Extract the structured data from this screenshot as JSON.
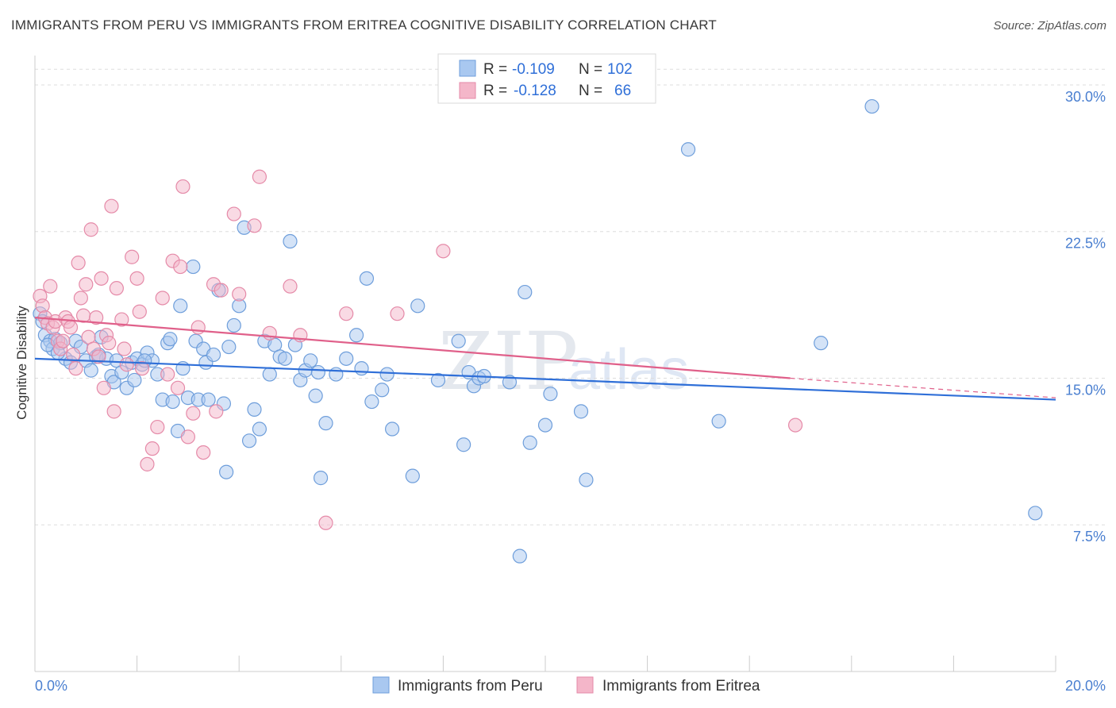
{
  "title": "IMMIGRANTS FROM PERU VS IMMIGRANTS FROM ERITREA COGNITIVE DISABILITY CORRELATION CHART",
  "source": "Source: ZipAtlas.com",
  "watermark": {
    "zip": "ZIP",
    "atlas": "atlas"
  },
  "legend_box": {
    "rows": [
      {
        "r_label": "R =",
        "r_value": "-0.109",
        "n_label": "N =",
        "n_value": "102"
      },
      {
        "r_label": "R =",
        "r_value": "-0.128",
        "n_label": "N =",
        "n_value": "66"
      }
    ]
  },
  "colors": {
    "peru_fill": "#a9c8f0",
    "peru_stroke": "#6e9edb",
    "peru_line": "#2f6fd8",
    "eritrea_fill": "#f4b6c9",
    "eritrea_stroke": "#e58aa8",
    "eritrea_line": "#e0608a",
    "grid": "#dddddd",
    "tick_label": "#4a7fd0"
  },
  "chart_data": {
    "type": "scatter",
    "title": "IMMIGRANTS FROM PERU VS IMMIGRANTS FROM ERITREA COGNITIVE DISABILITY CORRELATION CHART",
    "xlabel": "",
    "ylabel": "Cognitive Disability",
    "xlim": [
      0,
      20
    ],
    "ylim": [
      0,
      31.5
    ],
    "x_tick_labels": [
      "0.0%",
      "20.0%"
    ],
    "y_ticks": [
      7.5,
      15.0,
      22.5,
      30.0
    ],
    "y_tick_labels": [
      "7.5%",
      "15.0%",
      "22.5%",
      "30.0%"
    ],
    "grid": "horizontal dashed",
    "legend_position": "bottom",
    "series": [
      {
        "name": "Immigrants from Peru",
        "R": -0.109,
        "N": 102,
        "trend": {
          "x": [
            0,
            20
          ],
          "y": [
            16.0,
            13.9
          ]
        },
        "points": [
          [
            0.1,
            18.3
          ],
          [
            0.15,
            17.9
          ],
          [
            0.2,
            17.2
          ],
          [
            0.3,
            16.9
          ],
          [
            0.35,
            16.5
          ],
          [
            0.4,
            17.0
          ],
          [
            0.5,
            16.8
          ],
          [
            0.6,
            16.0
          ],
          [
            0.7,
            15.8
          ],
          [
            0.8,
            16.9
          ],
          [
            0.9,
            16.6
          ],
          [
            1.0,
            15.9
          ],
          [
            1.1,
            15.4
          ],
          [
            1.2,
            16.1
          ],
          [
            1.3,
            17.1
          ],
          [
            1.4,
            16.0
          ],
          [
            1.5,
            15.1
          ],
          [
            1.55,
            14.8
          ],
          [
            1.6,
            15.9
          ],
          [
            1.7,
            15.3
          ],
          [
            1.8,
            14.5
          ],
          [
            1.9,
            15.8
          ],
          [
            1.95,
            14.9
          ],
          [
            2.0,
            16.0
          ],
          [
            2.1,
            15.7
          ],
          [
            2.2,
            16.3
          ],
          [
            2.3,
            15.9
          ],
          [
            2.4,
            15.2
          ],
          [
            2.5,
            13.9
          ],
          [
            2.6,
            16.8
          ],
          [
            2.65,
            17.0
          ],
          [
            2.7,
            13.8
          ],
          [
            2.8,
            12.3
          ],
          [
            2.85,
            18.7
          ],
          [
            2.9,
            15.5
          ],
          [
            3.0,
            14.0
          ],
          [
            3.1,
            20.7
          ],
          [
            3.15,
            16.9
          ],
          [
            3.2,
            13.9
          ],
          [
            3.3,
            16.5
          ],
          [
            3.35,
            15.8
          ],
          [
            3.4,
            13.9
          ],
          [
            3.5,
            16.2
          ],
          [
            3.6,
            19.5
          ],
          [
            3.7,
            13.7
          ],
          [
            3.75,
            10.2
          ],
          [
            3.8,
            16.6
          ],
          [
            3.9,
            17.7
          ],
          [
            4.0,
            18.7
          ],
          [
            4.1,
            22.7
          ],
          [
            4.2,
            11.8
          ],
          [
            4.3,
            13.4
          ],
          [
            4.4,
            12.4
          ],
          [
            4.5,
            16.9
          ],
          [
            4.6,
            15.2
          ],
          [
            4.7,
            16.7
          ],
          [
            4.8,
            16.1
          ],
          [
            4.9,
            16.0
          ],
          [
            5.0,
            22.0
          ],
          [
            5.1,
            16.7
          ],
          [
            5.2,
            14.9
          ],
          [
            5.3,
            15.4
          ],
          [
            5.4,
            15.9
          ],
          [
            5.5,
            14.1
          ],
          [
            5.55,
            15.3
          ],
          [
            5.6,
            9.9
          ],
          [
            5.7,
            12.7
          ],
          [
            5.9,
            15.2
          ],
          [
            6.1,
            16.0
          ],
          [
            6.3,
            17.2
          ],
          [
            6.4,
            15.5
          ],
          [
            6.5,
            20.1
          ],
          [
            6.8,
            14.4
          ],
          [
            6.9,
            15.2
          ],
          [
            7.0,
            12.4
          ],
          [
            7.4,
            10.0
          ],
          [
            7.5,
            18.7
          ],
          [
            7.9,
            14.9
          ],
          [
            8.3,
            16.9
          ],
          [
            8.4,
            11.6
          ],
          [
            8.5,
            15.3
          ],
          [
            8.6,
            14.6
          ],
          [
            8.7,
            15.0
          ],
          [
            8.8,
            15.1
          ],
          [
            9.3,
            14.8
          ],
          [
            9.6,
            19.4
          ],
          [
            9.5,
            5.9
          ],
          [
            9.7,
            11.7
          ],
          [
            10.0,
            12.6
          ],
          [
            10.1,
            14.2
          ],
          [
            10.7,
            13.3
          ],
          [
            10.8,
            9.8
          ],
          [
            12.8,
            26.7
          ],
          [
            13.4,
            12.8
          ],
          [
            15.4,
            16.8
          ],
          [
            16.4,
            28.9
          ],
          [
            19.6,
            8.1
          ],
          [
            0.25,
            16.7
          ],
          [
            0.45,
            16.3
          ],
          [
            1.25,
            16.2
          ],
          [
            2.15,
            15.9
          ],
          [
            6.6,
            13.8
          ]
        ]
      },
      {
        "name": "Immigrants from Eritrea",
        "R": -0.128,
        "N": 66,
        "trend": {
          "x": [
            0,
            14.8
          ],
          "y": [
            18.1,
            15.0
          ]
        },
        "trend_dashed": {
          "x": [
            14.8,
            20
          ],
          "y": [
            15.0,
            14.0
          ]
        },
        "points": [
          [
            0.1,
            19.2
          ],
          [
            0.15,
            18.7
          ],
          [
            0.2,
            18.1
          ],
          [
            0.25,
            17.8
          ],
          [
            0.3,
            19.7
          ],
          [
            0.35,
            17.6
          ],
          [
            0.4,
            17.9
          ],
          [
            0.45,
            16.9
          ],
          [
            0.5,
            16.5
          ],
          [
            0.55,
            16.9
          ],
          [
            0.6,
            18.1
          ],
          [
            0.65,
            17.9
          ],
          [
            0.7,
            17.6
          ],
          [
            0.75,
            16.2
          ],
          [
            0.8,
            15.5
          ],
          [
            0.85,
            20.9
          ],
          [
            0.9,
            19.1
          ],
          [
            0.95,
            18.2
          ],
          [
            1.0,
            19.8
          ],
          [
            1.05,
            17.1
          ],
          [
            1.1,
            22.6
          ],
          [
            1.15,
            16.5
          ],
          [
            1.2,
            18.1
          ],
          [
            1.25,
            16.1
          ],
          [
            1.3,
            20.1
          ],
          [
            1.35,
            14.5
          ],
          [
            1.4,
            17.2
          ],
          [
            1.5,
            23.8
          ],
          [
            1.55,
            13.3
          ],
          [
            1.6,
            19.6
          ],
          [
            1.7,
            18.0
          ],
          [
            1.75,
            16.5
          ],
          [
            1.8,
            15.7
          ],
          [
            1.9,
            21.2
          ],
          [
            2.0,
            20.1
          ],
          [
            2.05,
            18.4
          ],
          [
            2.1,
            15.5
          ],
          [
            2.2,
            10.6
          ],
          [
            2.3,
            11.4
          ],
          [
            2.4,
            12.5
          ],
          [
            2.5,
            19.1
          ],
          [
            2.6,
            15.2
          ],
          [
            2.7,
            21.0
          ],
          [
            2.8,
            14.5
          ],
          [
            2.85,
            20.7
          ],
          [
            2.9,
            24.8
          ],
          [
            3.0,
            12.0
          ],
          [
            3.1,
            13.2
          ],
          [
            3.2,
            17.6
          ],
          [
            3.3,
            11.2
          ],
          [
            3.5,
            19.8
          ],
          [
            3.55,
            13.3
          ],
          [
            3.65,
            19.5
          ],
          [
            3.9,
            23.4
          ],
          [
            4.0,
            19.3
          ],
          [
            4.3,
            22.8
          ],
          [
            4.4,
            25.3
          ],
          [
            4.6,
            17.3
          ],
          [
            5.0,
            19.7
          ],
          [
            5.2,
            17.2
          ],
          [
            5.7,
            7.6
          ],
          [
            6.1,
            18.3
          ],
          [
            7.1,
            18.3
          ],
          [
            8.0,
            21.5
          ],
          [
            14.9,
            12.6
          ],
          [
            1.45,
            16.8
          ]
        ]
      }
    ]
  },
  "bottom_legend": {
    "peru_label": "Immigrants from Peru",
    "eritrea_label": "Immigrants from Eritrea"
  }
}
